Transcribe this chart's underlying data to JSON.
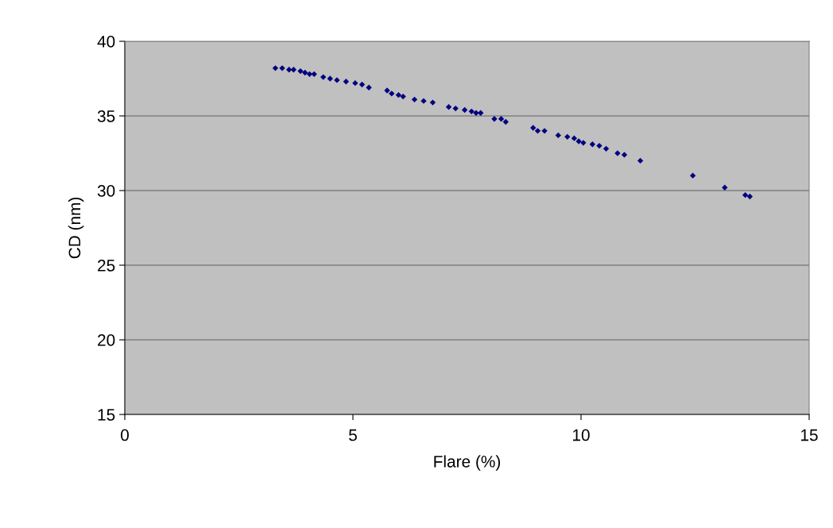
{
  "chart_data": {
    "type": "scatter",
    "xlabel": "Flare (%)",
    "ylabel": "CD (nm)",
    "x": [
      3.3,
      3.45,
      3.6,
      3.7,
      3.85,
      3.95,
      4.05,
      4.15,
      4.35,
      4.5,
      4.65,
      4.85,
      5.05,
      5.2,
      5.35,
      5.75,
      5.85,
      6.0,
      6.1,
      6.35,
      6.55,
      6.75,
      7.1,
      7.25,
      7.45,
      7.6,
      7.7,
      7.8,
      8.1,
      8.25,
      8.35,
      8.95,
      9.05,
      9.2,
      9.5,
      9.7,
      9.85,
      9.95,
      10.05,
      10.25,
      10.4,
      10.55,
      10.8,
      10.95,
      11.3,
      12.45,
      13.15,
      13.6,
      13.7
    ],
    "series": [
      {
        "color": "#000080",
        "values": [
          38.2,
          38.2,
          38.1,
          38.1,
          38.0,
          37.9,
          37.8,
          37.8,
          37.6,
          37.5,
          37.4,
          37.3,
          37.2,
          37.1,
          36.9,
          36.7,
          36.5,
          36.4,
          36.3,
          36.1,
          36.0,
          35.9,
          35.6,
          35.5,
          35.4,
          35.3,
          35.2,
          35.2,
          34.8,
          34.8,
          34.6,
          34.2,
          34.0,
          34.0,
          33.7,
          33.6,
          33.5,
          33.3,
          33.2,
          33.1,
          33.0,
          32.8,
          32.5,
          32.4,
          32.0,
          31.0,
          30.2,
          29.7,
          29.6
        ]
      }
    ],
    "xlim": [
      0,
      15
    ],
    "xticks": [
      0,
      5,
      10,
      15
    ],
    "ylim": [
      15,
      40
    ],
    "yticks": [
      15,
      20,
      25,
      30,
      35,
      40
    ],
    "grid": "y",
    "marker": "diamond",
    "legend": false
  }
}
